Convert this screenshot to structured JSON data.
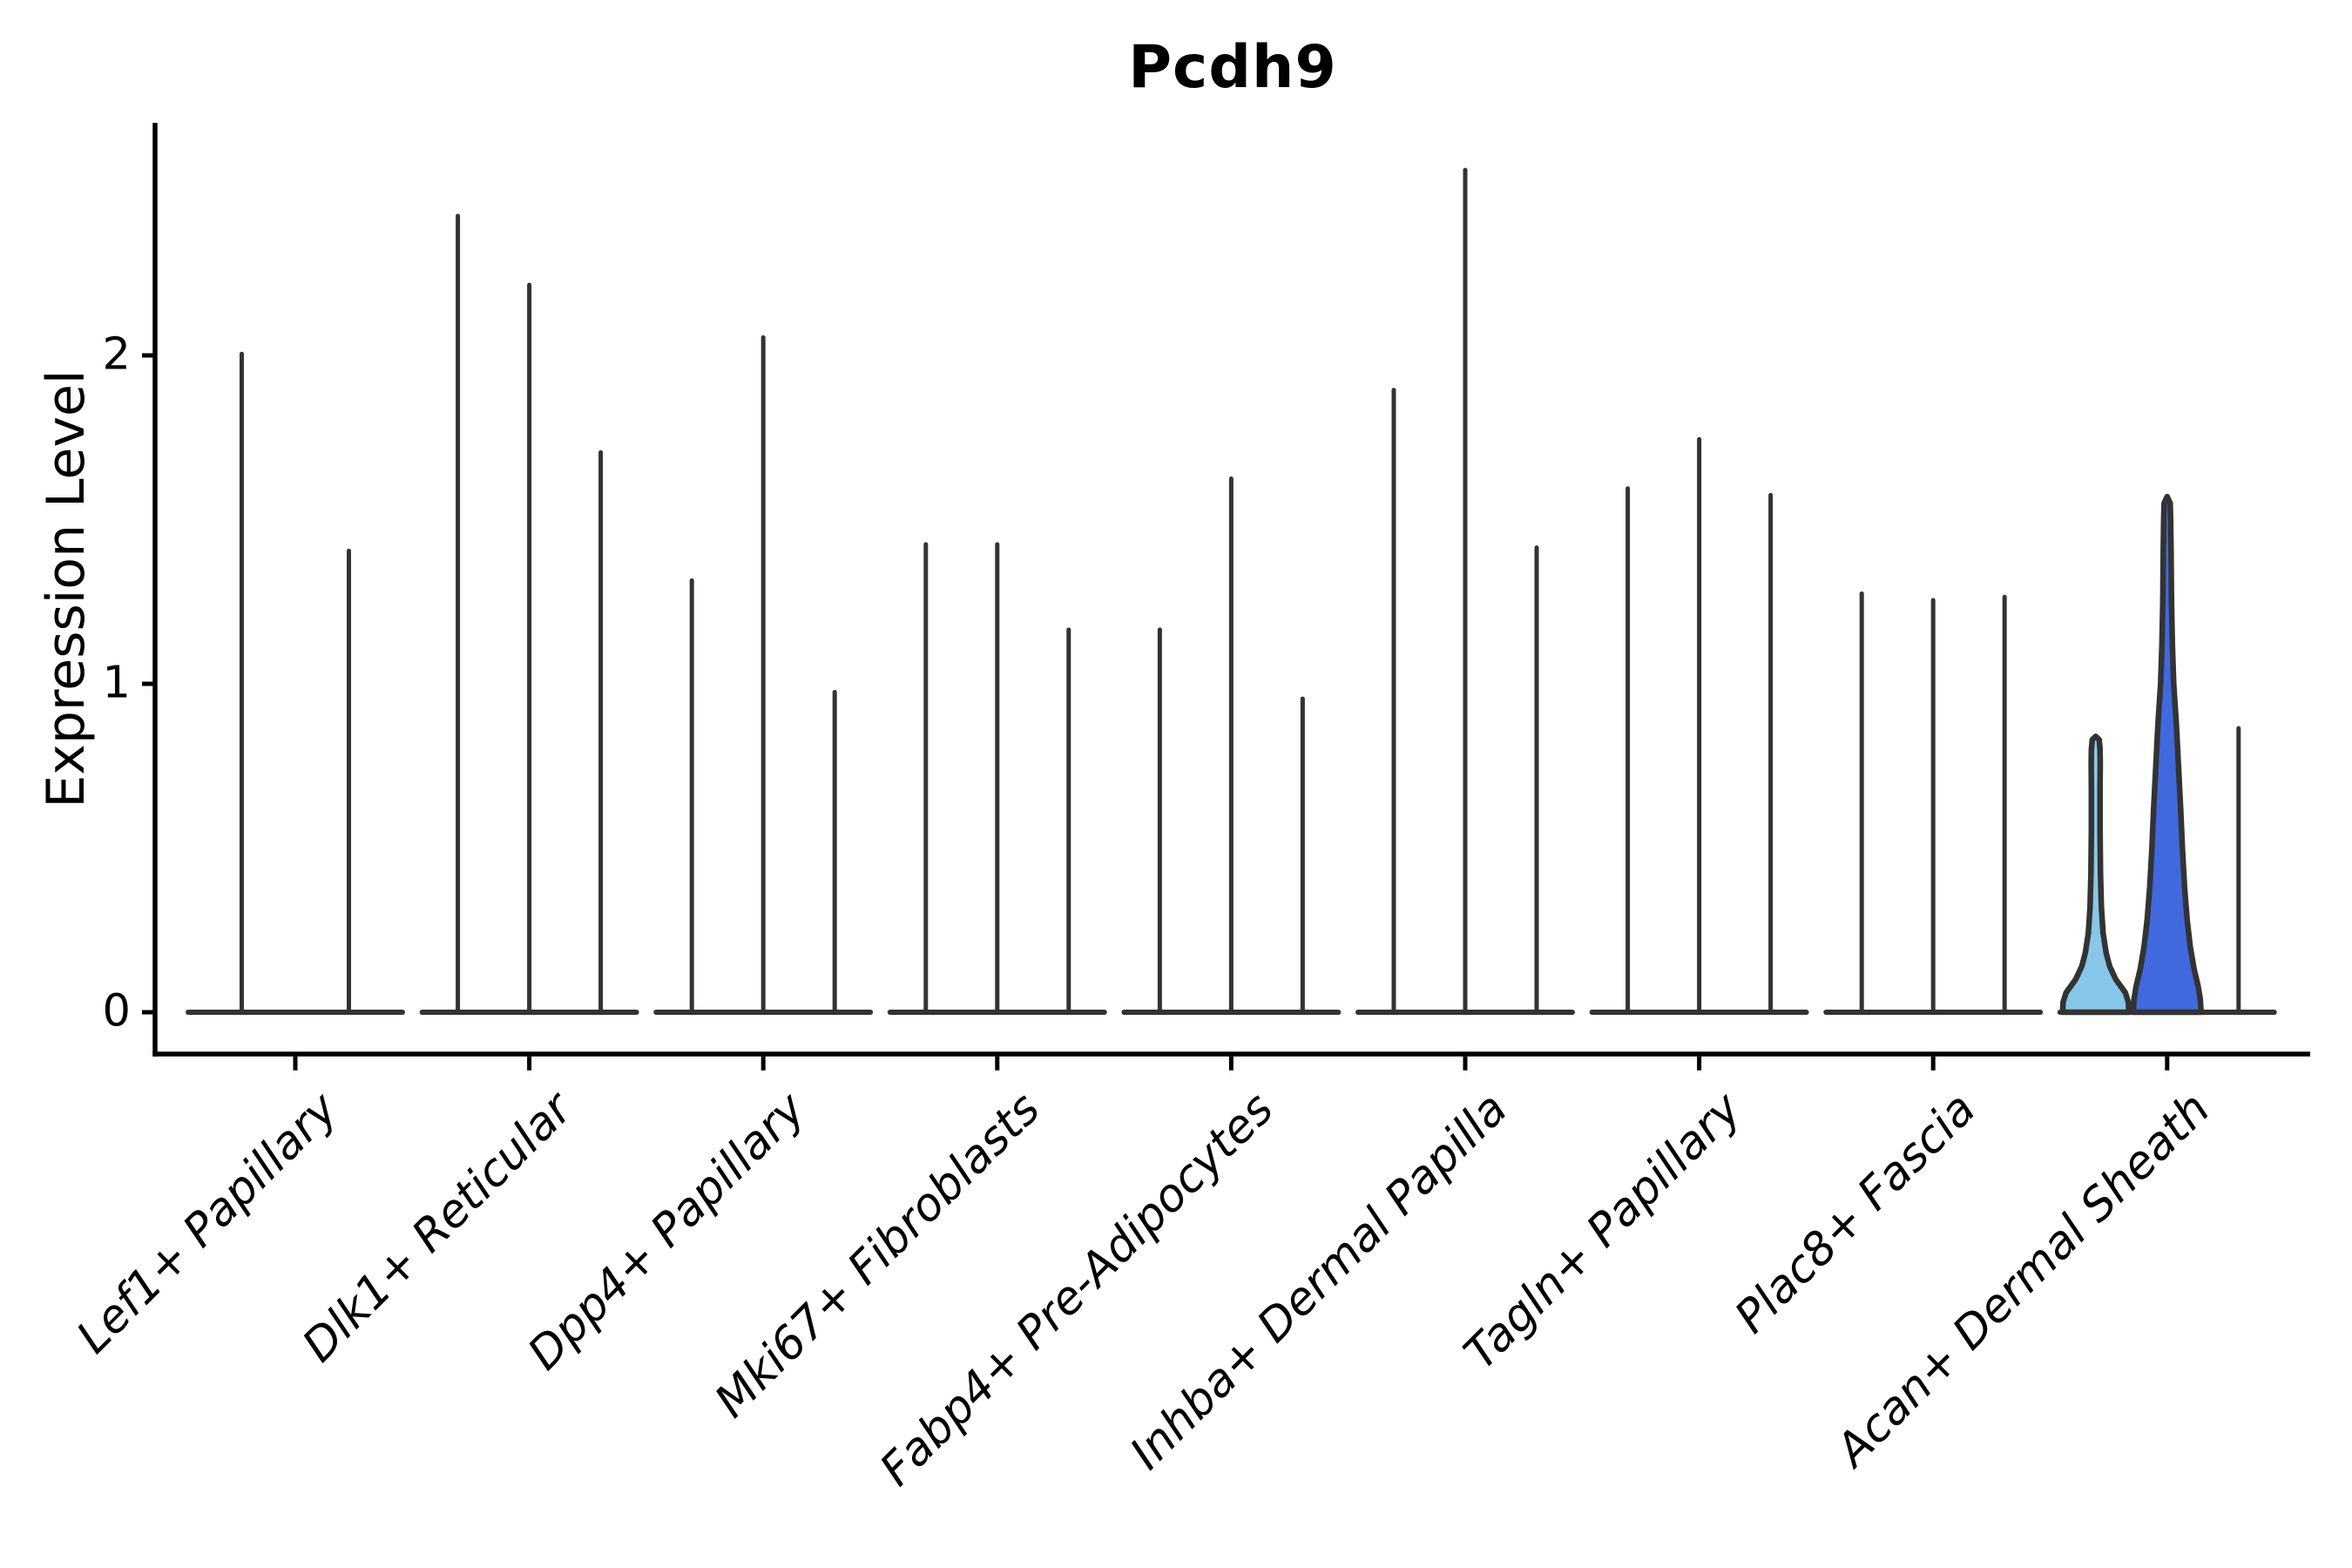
{
  "title": "Pcdh9",
  "chart_data": {
    "type": "violin",
    "title": "Pcdh9",
    "ylabel": "Expression Level",
    "xlabel": "",
    "grid": "off",
    "legend": "none",
    "ylim": [
      -0.13,
      2.71
    ],
    "yticks": [
      "0",
      "1",
      "2"
    ],
    "ytick_values": [
      0,
      1,
      2
    ],
    "categories": [
      "Lef1+ Papillary",
      "Dlk1+ Reticular",
      "Dpp4+ Papillary",
      "Mki67+ Fibroblasts",
      "Fabp4+ Pre-Adipocytes",
      "Inhba+ Dermal Papilla",
      "Tagln+ Papillary",
      "Plac8+ Fascia",
      "Acan+ Dermal Sheath"
    ],
    "groups": [
      {
        "category": "Lef1+ Papillary",
        "violins": [
          {
            "max": 2.01
          },
          {
            "max": 1.41
          }
        ]
      },
      {
        "category": "Dlk1+ Reticular",
        "violins": [
          {
            "max": 2.43
          },
          {
            "max": 2.22
          },
          {
            "max": 1.71
          }
        ]
      },
      {
        "category": "Dpp4+ Papillary",
        "violins": [
          {
            "max": 1.32
          },
          {
            "max": 2.06
          },
          {
            "max": 0.98
          }
        ]
      },
      {
        "category": "Mki67+ Fibroblasts",
        "violins": [
          {
            "max": 1.43
          },
          {
            "max": 1.43
          },
          {
            "max": 1.17
          }
        ]
      },
      {
        "category": "Fabp4+ Pre-Adipocytes",
        "violins": [
          {
            "max": 1.17
          },
          {
            "max": 1.63
          },
          {
            "max": 0.96
          }
        ]
      },
      {
        "category": "Inhba+ Dermal Papilla",
        "violins": [
          {
            "max": 1.9
          },
          {
            "max": 2.57
          },
          {
            "max": 1.42
          }
        ]
      },
      {
        "category": "Tagln+ Papillary",
        "violins": [
          {
            "max": 1.6
          },
          {
            "max": 1.75
          },
          {
            "max": 1.58
          }
        ]
      },
      {
        "category": "Plac8+ Fascia",
        "violins": [
          {
            "max": 1.28
          },
          {
            "max": 1.26
          },
          {
            "max": 1.27
          }
        ]
      },
      {
        "category": "Acan+ Dermal Sheath",
        "violins": [
          {
            "max": 0.84,
            "fill": "#87C7E9",
            "profile": [
              [
                0,
                38
              ],
              [
                0.03,
                37.5
              ],
              [
                0.06,
                34
              ],
              [
                0.1,
                23
              ],
              [
                0.14,
                16
              ],
              [
                0.18,
                12
              ],
              [
                0.24,
                8.5
              ],
              [
                0.32,
                6.5
              ],
              [
                0.42,
                5.5
              ],
              [
                0.55,
                5
              ],
              [
                0.68,
                5
              ],
              [
                0.76,
                5.2
              ],
              [
                0.8,
                5
              ],
              [
                0.83,
                4
              ],
              [
                0.84,
                0
              ]
            ]
          },
          {
            "max": 1.57,
            "fill": "#4169DE",
            "profile": [
              [
                0,
                39
              ],
              [
                0.04,
                38
              ],
              [
                0.08,
                35.5
              ],
              [
                0.13,
                31
              ],
              [
                0.2,
                26.5
              ],
              [
                0.28,
                23
              ],
              [
                0.38,
                20
              ],
              [
                0.5,
                17.5
              ],
              [
                0.62,
                15.5
              ],
              [
                0.75,
                13
              ],
              [
                0.88,
                10.5
              ],
              [
                1.0,
                7.5
              ],
              [
                1.12,
                6
              ],
              [
                1.25,
                5
              ],
              [
                1.4,
                4.5
              ],
              [
                1.5,
                4
              ],
              [
                1.55,
                3.5
              ],
              [
                1.57,
                0
              ]
            ]
          },
          {
            "max": 0.87
          }
        ]
      }
    ],
    "colors": {
      "axis": "#000000",
      "spike": "#333333",
      "violin_outline": "#333333",
      "light_blue_fill": "#87C7E9",
      "royal_blue_fill": "#4169DE",
      "background": "#ffffff"
    }
  }
}
